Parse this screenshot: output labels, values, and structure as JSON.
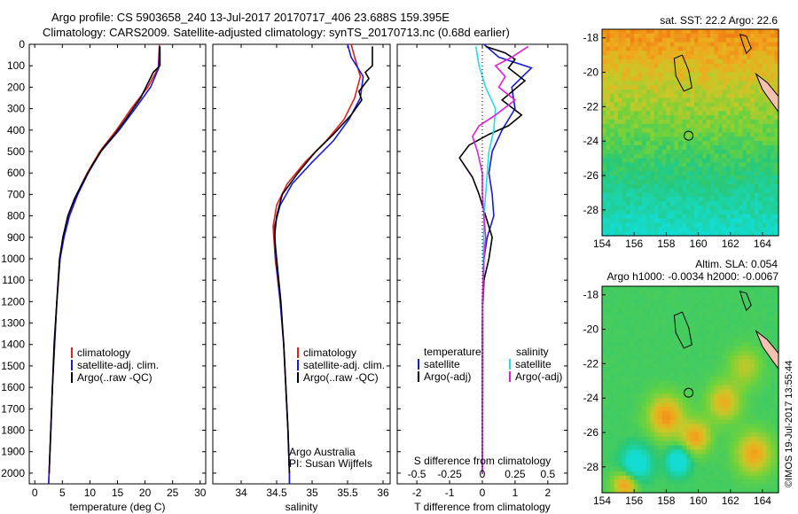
{
  "header": {
    "line1": "Argo profile: CS 5903658_240 13-Jul-2017 20170717_406 23.688S 159.395E",
    "line2": "Climatology: CARS2009. Satellite-adjusted climatology: synTS_20170713.nc (0.68d earlier)"
  },
  "credit": "©IMOS 19-Jul-2017 13:55:44",
  "colors": {
    "climatology": "#e0201b",
    "satellite": "#1a1adc",
    "argo": "#000000",
    "salinity_satellite": "#22dde6",
    "salinity_argo": "#e01ed8",
    "coast": "#000000",
    "land": "#f5c2b0"
  },
  "chart_data": [
    {
      "type": "line",
      "panel": "temperature",
      "xlabel": "temperature (deg C)",
      "ylabel": "",
      "xlim": [
        -1,
        31
      ],
      "ylim": [
        2050,
        0
      ],
      "xticks": [
        "0",
        "5",
        "10",
        "15",
        "20",
        "25",
        "30"
      ],
      "yticks": [
        "0",
        "100",
        "200",
        "300",
        "400",
        "500",
        "600",
        "700",
        "800",
        "900",
        "1000",
        "1100",
        "1200",
        "1300",
        "1400",
        "1500",
        "1600",
        "1700",
        "1800",
        "1900",
        "2000"
      ],
      "legend": [
        "climatology",
        "satellite-adj. clim.",
        "Argo(..raw -QC)"
      ],
      "series": [
        {
          "name": "climatology",
          "color_key": "climatology",
          "points": [
            [
              22.6,
              0
            ],
            [
              22.4,
              110
            ],
            [
              20.5,
              200
            ],
            [
              17.5,
              300
            ],
            [
              14.8,
              400
            ],
            [
              11.8,
              500
            ],
            [
              9.5,
              600
            ],
            [
              7.6,
              700
            ],
            [
              6.2,
              800
            ],
            [
              5.2,
              900
            ],
            [
              4.5,
              1000
            ],
            [
              4.0,
              1200
            ],
            [
              3.6,
              1400
            ],
            [
              3.2,
              1600
            ],
            [
              2.9,
              1800
            ],
            [
              2.6,
              2000
            ],
            [
              2.5,
              2050
            ]
          ]
        },
        {
          "name": "satellite-adj. clim.",
          "color_key": "satellite",
          "points": [
            [
              22.6,
              10
            ],
            [
              22.5,
              110
            ],
            [
              21.0,
              200
            ],
            [
              18.2,
              300
            ],
            [
              15.3,
              400
            ],
            [
              12.0,
              500
            ],
            [
              9.7,
              600
            ],
            [
              7.8,
              700
            ],
            [
              6.3,
              800
            ],
            [
              5.3,
              900
            ],
            [
              4.6,
              1000
            ],
            [
              4.0,
              1200
            ],
            [
              3.6,
              1400
            ],
            [
              3.2,
              1600
            ],
            [
              2.9,
              1800
            ],
            [
              2.6,
              2000
            ],
            [
              2.5,
              2050
            ]
          ]
        },
        {
          "name": "Argo(..raw -QC)",
          "color_key": "argo",
          "points": [
            [
              22.7,
              10
            ],
            [
              22.7,
              100
            ],
            [
              21.5,
              130
            ],
            [
              19.2,
              250
            ],
            [
              16.5,
              350
            ],
            [
              14.5,
              420
            ],
            [
              12.5,
              480
            ],
            [
              10.5,
              560
            ],
            [
              8.8,
              640
            ],
            [
              7.2,
              720
            ],
            [
              6.0,
              800
            ],
            [
              5.1,
              900
            ],
            [
              4.5,
              1000
            ],
            [
              4.0,
              1200
            ],
            [
              3.5,
              1400
            ],
            [
              3.2,
              1600
            ],
            [
              2.9,
              1800
            ],
            [
              2.6,
              2000
            ]
          ]
        }
      ]
    },
    {
      "type": "line",
      "panel": "salinity",
      "xlabel": "salinity",
      "ylabel": "",
      "xlim": [
        33.6,
        36.1
      ],
      "ylim": [
        2050,
        0
      ],
      "xticks": [
        "34",
        "34.5",
        "35",
        "35.5",
        "36"
      ],
      "legend": [
        "climatology",
        "satellite-adj. clim.",
        "Argo(..raw -QC)"
      ],
      "annotation": [
        "Argo Australia",
        "PI: Susan Wijffels"
      ],
      "series": [
        {
          "name": "climatology",
          "color_key": "climatology",
          "points": [
            [
              35.55,
              0
            ],
            [
              35.6,
              60
            ],
            [
              35.68,
              150
            ],
            [
              35.6,
              250
            ],
            [
              35.45,
              350
            ],
            [
              35.2,
              450
            ],
            [
              34.9,
              550
            ],
            [
              34.65,
              650
            ],
            [
              34.5,
              750
            ],
            [
              34.45,
              850
            ],
            [
              34.48,
              1000
            ],
            [
              34.55,
              1200
            ],
            [
              34.6,
              1400
            ],
            [
              34.63,
              1600
            ],
            [
              34.66,
              1800
            ],
            [
              34.68,
              2000
            ],
            [
              34.68,
              2050
            ]
          ]
        },
        {
          "name": "satellite-adj. clim.",
          "color_key": "satellite",
          "points": [
            [
              35.5,
              0
            ],
            [
              35.55,
              60
            ],
            [
              35.72,
              150
            ],
            [
              35.68,
              250
            ],
            [
              35.52,
              350
            ],
            [
              35.3,
              450
            ],
            [
              35.0,
              550
            ],
            [
              34.72,
              650
            ],
            [
              34.55,
              750
            ],
            [
              34.47,
              850
            ],
            [
              34.49,
              1000
            ],
            [
              34.55,
              1200
            ],
            [
              34.6,
              1400
            ],
            [
              34.63,
              1600
            ],
            [
              34.66,
              1800
            ],
            [
              34.68,
              2000
            ],
            [
              34.68,
              2050
            ]
          ]
        },
        {
          "name": "Argo(..raw -QC)",
          "color_key": "argo",
          "points": [
            [
              35.85,
              10
            ],
            [
              35.85,
              100
            ],
            [
              35.75,
              130
            ],
            [
              35.8,
              160
            ],
            [
              35.66,
              220
            ],
            [
              35.7,
              260
            ],
            [
              35.55,
              330
            ],
            [
              35.3,
              420
            ],
            [
              35.05,
              500
            ],
            [
              34.8,
              600
            ],
            [
              34.58,
              700
            ],
            [
              34.5,
              800
            ],
            [
              34.47,
              900
            ],
            [
              34.5,
              1000
            ],
            [
              34.56,
              1200
            ],
            [
              34.6,
              1400
            ],
            [
              34.63,
              1600
            ],
            [
              34.66,
              1800
            ],
            [
              34.68,
              2000
            ]
          ]
        }
      ]
    },
    {
      "type": "line",
      "panel": "difference",
      "xlabel": "T difference from climatology",
      "x2label": "S difference from climatology",
      "xlim": [
        -2.6,
        2.6
      ],
      "ylim": [
        2050,
        0
      ],
      "xticks_T": [
        "-2",
        "-1",
        "0",
        "1",
        "2"
      ],
      "xticks_S": [
        "-0.5",
        "-0.25",
        "0",
        "0.25",
        "0.5"
      ],
      "legend": {
        "temperature_head": "temperature",
        "salinity_head": "salinity",
        "temperature_items": [
          "satellite",
          "Argo(-adj)"
        ],
        "salinity_items": [
          "satellite",
          "Argo(-adj)"
        ]
      },
      "series": [
        {
          "name": "temperature satellite",
          "color_key": "satellite",
          "points": [
            [
              0.05,
              0
            ],
            [
              0.5,
              60
            ],
            [
              1.5,
              110
            ],
            [
              0.9,
              200
            ],
            [
              1.0,
              300
            ],
            [
              0.6,
              400
            ],
            [
              0.3,
              500
            ],
            [
              0.2,
              600
            ],
            [
              0.3,
              700
            ],
            [
              0.35,
              800
            ],
            [
              0.15,
              900
            ],
            [
              0.05,
              1000
            ],
            [
              0.02,
              1200
            ],
            [
              0.01,
              1600
            ],
            [
              0.0,
              2000
            ]
          ]
        },
        {
          "name": "temperature Argo(-adj)",
          "color_key": "argo",
          "points": [
            [
              0.1,
              10
            ],
            [
              0.7,
              40
            ],
            [
              1.0,
              70
            ],
            [
              0.8,
              110
            ],
            [
              1.3,
              170
            ],
            [
              0.6,
              260
            ],
            [
              1.2,
              330
            ],
            [
              0.8,
              380
            ],
            [
              0.2,
              420
            ],
            [
              -0.4,
              470
            ],
            [
              -0.7,
              530
            ],
            [
              -0.3,
              620
            ],
            [
              -0.1,
              700
            ],
            [
              0.1,
              800
            ],
            [
              0.3,
              900
            ],
            [
              0.2,
              1000
            ],
            [
              0.05,
              1100
            ],
            [
              0.0,
              1300
            ],
            [
              0.0,
              2000
            ]
          ]
        },
        {
          "name": "salinity satellite",
          "color_key": "salinity_satellite",
          "points": [
            [
              -0.2,
              10
            ],
            [
              -0.1,
              100
            ],
            [
              0.1,
              200
            ],
            [
              0.4,
              300
            ],
            [
              0.35,
              400
            ],
            [
              0.2,
              500
            ],
            [
              0.15,
              600
            ],
            [
              0.1,
              700
            ],
            [
              0.05,
              800
            ],
            [
              0.03,
              1000
            ],
            [
              0.01,
              1400
            ],
            [
              0.0,
              2000
            ]
          ]
        },
        {
          "name": "salinity Argo(-adj)",
          "color_key": "salinity_argo",
          "points": [
            [
              1.4,
              10
            ],
            [
              0.9,
              60
            ],
            [
              0.4,
              100
            ],
            [
              0.7,
              150
            ],
            [
              0.5,
              200
            ],
            [
              1.0,
              260
            ],
            [
              0.4,
              330
            ],
            [
              -0.1,
              380
            ],
            [
              -0.3,
              430
            ],
            [
              -0.15,
              500
            ],
            [
              0.0,
              600
            ],
            [
              0.0,
              700
            ],
            [
              0.05,
              800
            ],
            [
              0.1,
              900
            ],
            [
              0.05,
              1000
            ],
            [
              0.0,
              1200
            ],
            [
              0.0,
              2000
            ]
          ]
        }
      ]
    },
    {
      "type": "heatmap",
      "panel": "sst_map",
      "title": "sat. SST: 22.2  Argo: 22.6",
      "xlim": [
        154,
        165
      ],
      "ylim": [
        -29.5,
        -17.5
      ],
      "xticks": [
        "154",
        "156",
        "158",
        "160",
        "162",
        "164"
      ],
      "yticks": [
        "-18",
        "-20",
        "-22",
        "-24",
        "-26",
        "-28"
      ],
      "profile_location": [
        159.395,
        -23.688
      ]
    },
    {
      "type": "heatmap",
      "panel": "sla_map",
      "title": "Altim. SLA: 0.054",
      "subtitle": "Argo h1000: -0.0034 h2000: -0.0067",
      "xlim": [
        154,
        165
      ],
      "ylim": [
        -29.5,
        -17.5
      ],
      "xticks": [
        "154",
        "156",
        "158",
        "160",
        "162",
        "164"
      ],
      "yticks": [
        "-18",
        "-20",
        "-22",
        "-24",
        "-26",
        "-28"
      ],
      "profile_location": [
        159.395,
        -23.688
      ]
    }
  ]
}
